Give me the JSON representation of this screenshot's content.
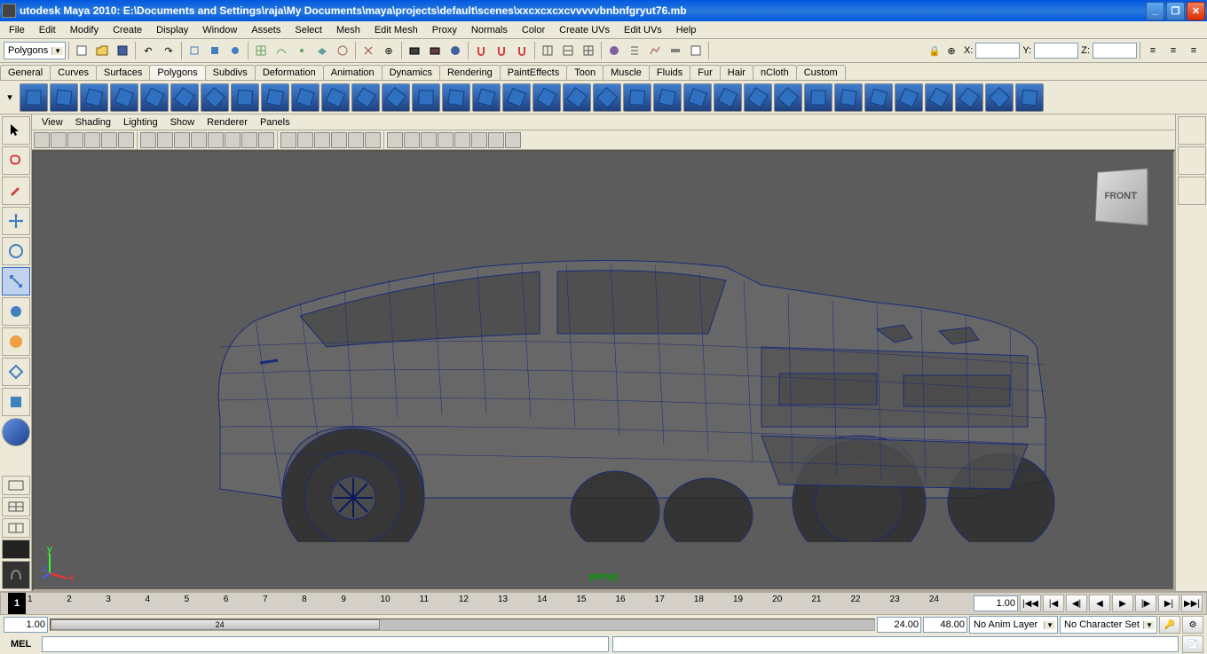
{
  "title": "utodesk Maya 2010: E:\\Documents and Settings\\raja\\My Documents\\maya\\projects\\default\\scenes\\xxcxcxcxcvvvvvbnbnfgryut76.mb",
  "menus": [
    "File",
    "Edit",
    "Modify",
    "Create",
    "Display",
    "Window",
    "Assets",
    "Select",
    "Mesh",
    "Edit Mesh",
    "Proxy",
    "Normals",
    "Color",
    "Create UVs",
    "Edit UVs",
    "Help"
  ],
  "module_dropdown": "Polygons",
  "coords": {
    "x_label": "X:",
    "y_label": "Y:",
    "z_label": "Z:",
    "x": "",
    "y": "",
    "z": ""
  },
  "shelf_tabs": [
    "General",
    "Curves",
    "Surfaces",
    "Polygons",
    "Subdivs",
    "Deformation",
    "Animation",
    "Dynamics",
    "Rendering",
    "PaintEffects",
    "Toon",
    "Muscle",
    "Fluids",
    "Fur",
    "Hair",
    "nCloth",
    "Custom"
  ],
  "active_shelf": "Polygons",
  "viewport_menus": [
    "View",
    "Shading",
    "Lighting",
    "Show",
    "Renderer",
    "Panels"
  ],
  "viewport_label": "persp",
  "view_cube": "FRONT",
  "timeline": {
    "ticks": [
      1,
      2,
      3,
      4,
      5,
      6,
      7,
      8,
      9,
      10,
      11,
      12,
      13,
      14,
      15,
      16,
      17,
      18,
      19,
      20,
      21,
      22,
      23,
      24
    ],
    "current": "1",
    "start_display": "1.00",
    "range_start": "1.00",
    "range_end": "24.00",
    "end": "48.00",
    "anim_layer": "No Anim Layer",
    "char_set": "No Character Set",
    "rate": "24"
  },
  "cmd_label": "MEL",
  "colors": {
    "viewport_bg": "#5c5c5c",
    "wireframe": "#1a2a7a",
    "persp_text": "#00a000",
    "titlebar_gradient_top": "#0058e0",
    "ui_bg": "#ece9d8"
  },
  "axis": {
    "x": "x",
    "y": "y",
    "z": "z",
    "x_color": "#ff3030",
    "y_color": "#30ff30",
    "z_color": "#4060ff"
  }
}
